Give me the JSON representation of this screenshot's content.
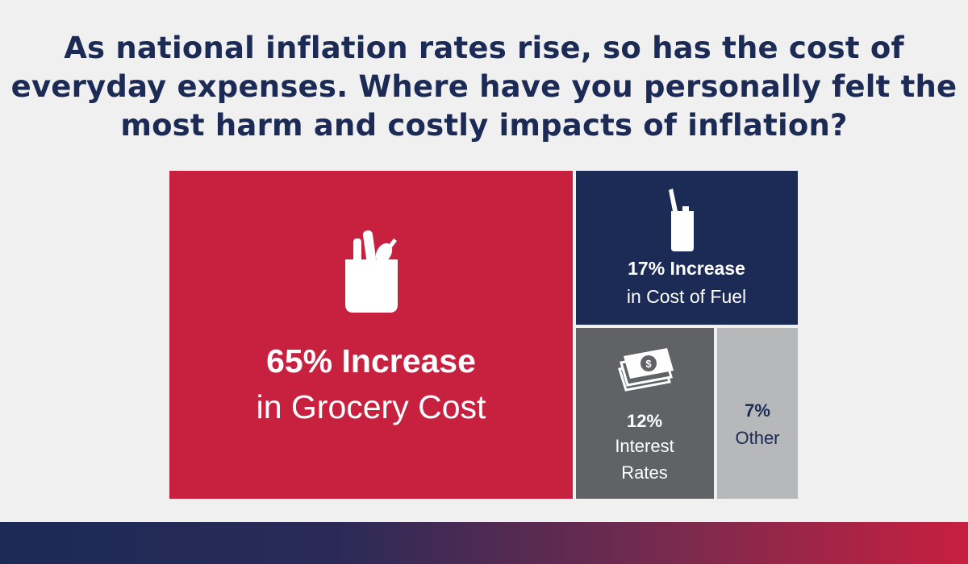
{
  "title_lines": [
    "As national inflation rates rise, so has the cost of",
    "everyday expenses. Where have you personally felt the",
    "most harm and costly impacts of inflation?"
  ],
  "chart_data": {
    "type": "treemap",
    "items": [
      {
        "value": 65,
        "label_bold": "65% Increase",
        "label_rest": "in Grocery Cost",
        "color": "#c8203f",
        "icon": "grocery-bag-icon"
      },
      {
        "value": 17,
        "label_bold": "17% Increase",
        "label_rest": "in Cost of Fuel",
        "color": "#1c2a56",
        "icon": "fuel-can-icon"
      },
      {
        "value": 12,
        "label_bold": "12%",
        "label_rest": "Interest Rates",
        "color": "#616266",
        "icon": "money-icon"
      },
      {
        "value": 7,
        "label_bold": "7%",
        "label_rest": "Other",
        "color": "#b7b8ba",
        "icon": ""
      }
    ]
  },
  "colors": {
    "background": "#f0f0f0",
    "title": "#1c2a56",
    "label_light": "#ffffff",
    "label_dark": "#1c2a56"
  }
}
